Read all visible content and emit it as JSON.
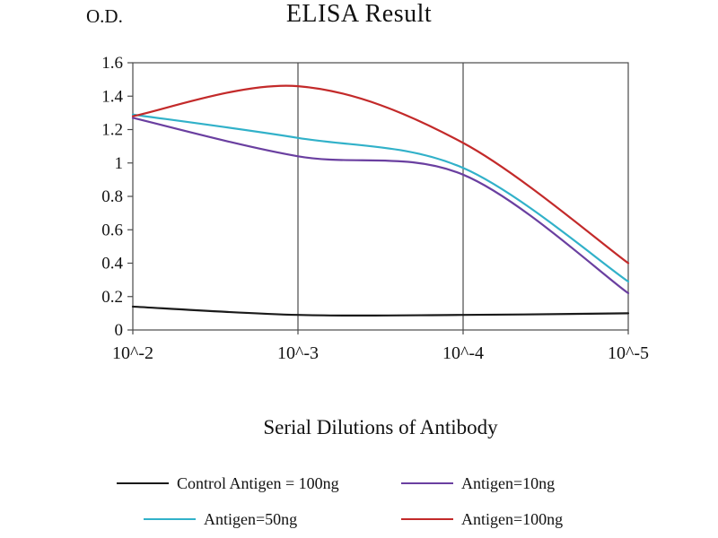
{
  "chart_data": {
    "type": "line",
    "title": "ELISA Result",
    "ylabel": "O.D.",
    "xlabel": "Serial Dilutions of Antibody",
    "categories": [
      "10^-2",
      "10^-3",
      "10^-4",
      "10^-5"
    ],
    "ylim": [
      0,
      1.6
    ],
    "ytick_step": 0.2,
    "ytick_labels": [
      "0",
      "0.2",
      "0.4",
      "0.6",
      "0.8",
      "1",
      "1.2",
      "1.4",
      "1.6"
    ],
    "grid": "vertical",
    "legend_position": "bottom",
    "axis_color": "#4a4a4a",
    "series": [
      {
        "name": "Control Antigen = 100ng",
        "color": "#1a1a1a",
        "values": [
          0.14,
          0.09,
          0.09,
          0.1
        ]
      },
      {
        "name": "Antigen=10ng",
        "color": "#6a3fa0",
        "values": [
          1.27,
          1.04,
          0.93,
          0.22
        ]
      },
      {
        "name": "Antigen=50ng",
        "color": "#31b1c9",
        "values": [
          1.29,
          1.15,
          0.97,
          0.29
        ]
      },
      {
        "name": "Antigen=100ng",
        "color": "#c32a2a",
        "values": [
          1.28,
          1.46,
          1.12,
          0.4
        ]
      }
    ],
    "legend_rows": [
      [
        0,
        1
      ],
      [
        2,
        3
      ]
    ]
  }
}
